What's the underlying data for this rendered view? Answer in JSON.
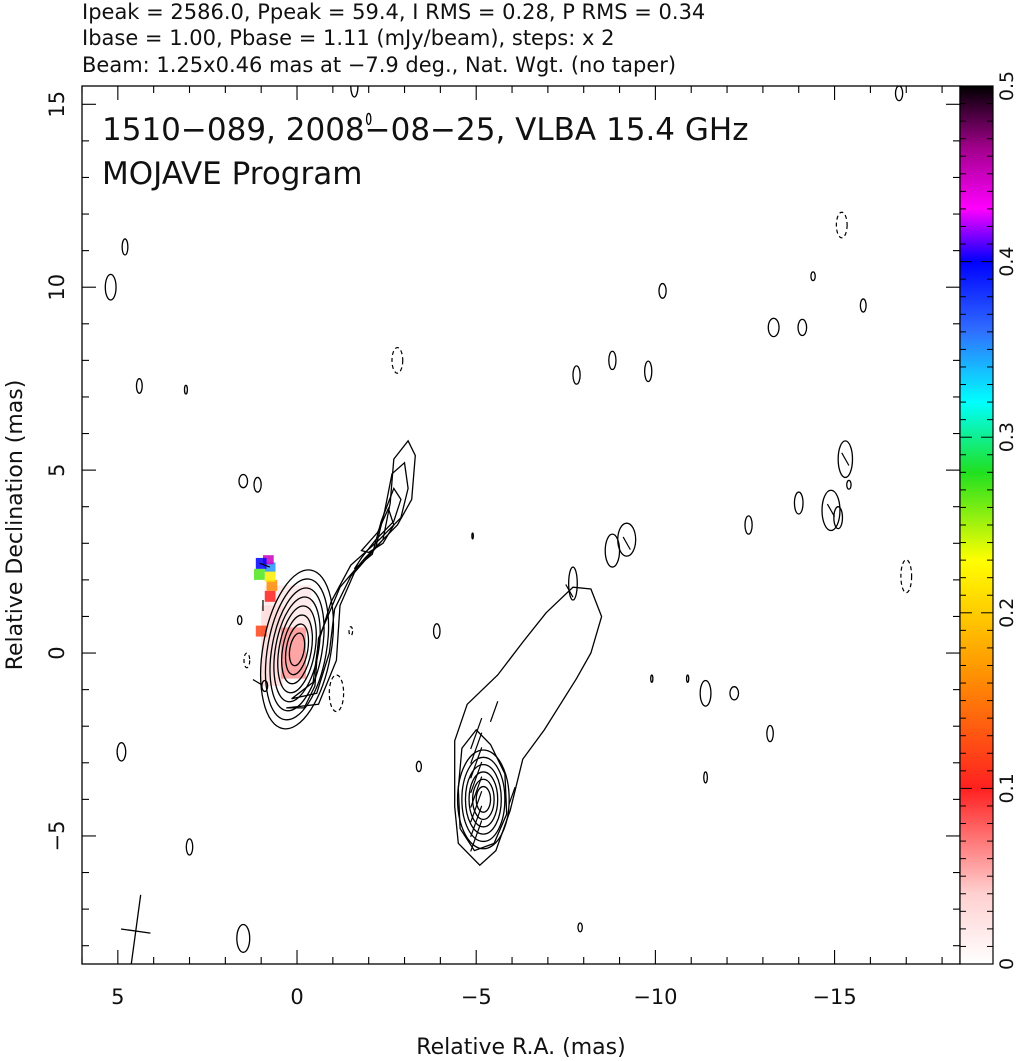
{
  "chart_data": {
    "type": "contour",
    "header_lines": [
      "Ipeak = 2586.0, Ppeak = 59.4, I RMS = 0.28, P RMS = 0.34",
      "Ibase = 1.00, Pbase = 1.11 (mJy/beam), steps: x 2",
      "Beam: 1.25x0.46 mas at −7.9 deg., Nat. Wgt. (no taper)"
    ],
    "title": "1510−089, 2008−08−25, VLBA 15.4 GHz",
    "subtitle": "MOJAVE Program",
    "xlabel": "Relative R.A. (mas)",
    "ylabel": "Relative Declination (mas)",
    "xlim": [
      6,
      -18.5
    ],
    "ylim": [
      -8.5,
      15.5
    ],
    "xticks": [
      5,
      0,
      -5,
      -10,
      -15
    ],
    "xtick_labels": [
      "5",
      "0",
      "−5",
      "−10",
      "−15"
    ],
    "yticks": [
      -5,
      0,
      5,
      10,
      15
    ],
    "ytick_labels": [
      "−5",
      "0",
      "5",
      "10",
      "15"
    ],
    "colorbar": {
      "range": [
        0,
        0.5
      ],
      "ticks": [
        0,
        0.1,
        0.2,
        0.3,
        0.4,
        0.5
      ],
      "tick_labels": [
        "0",
        "0.1",
        "0.2",
        "0.3",
        "0.4",
        "0.5"
      ]
    },
    "beam": {
      "major_mas": 1.25,
      "minor_mas": 0.46,
      "pa_deg": -7.9,
      "center": [
        4.5,
        -7.6
      ]
    },
    "core_total_intensity": {
      "center": [
        0,
        0.1
      ],
      "contours": [
        {
          "rx": 0.2,
          "ry": 0.45
        },
        {
          "rx": 0.3,
          "ry": 0.7
        },
        {
          "rx": 0.4,
          "ry": 0.95
        },
        {
          "rx": 0.5,
          "ry": 1.2
        },
        {
          "rx": 0.6,
          "ry": 1.45
        },
        {
          "rx": 0.7,
          "ry": 1.7
        },
        {
          "rx": 0.82,
          "ry": 1.95
        },
        {
          "rx": 0.95,
          "ry": 2.2
        }
      ]
    },
    "outer_contours": [
      [
        [
          0.3,
          -1.5
        ],
        [
          -0.6,
          -1.4
        ],
        [
          -1.1,
          -0.2
        ],
        [
          -1.2,
          1.3
        ],
        [
          -1.6,
          2.2
        ],
        [
          -2.4,
          3.1
        ],
        [
          -2.6,
          4.1
        ],
        [
          -2.7,
          5.3
        ],
        [
          -3.1,
          5.8
        ],
        [
          -3.3,
          5.4
        ],
        [
          -3.2,
          4.2
        ],
        [
          -2.8,
          3.5
        ],
        [
          -1.9,
          2.6
        ],
        [
          -1.2,
          1.8
        ],
        [
          -0.6,
          0.4
        ],
        [
          -0.5,
          -0.9
        ],
        [
          -0.2,
          -1.5
        ],
        [
          0.3,
          -1.5
        ]
      ],
      [
        [
          0.15,
          -1.25
        ],
        [
          -0.55,
          -1.1
        ],
        [
          -0.9,
          0
        ],
        [
          -1.05,
          1.2
        ],
        [
          -1.5,
          2.1
        ],
        [
          -2.2,
          2.9
        ],
        [
          -2.45,
          3.9
        ],
        [
          -2.65,
          4.9
        ],
        [
          -3.0,
          5.2
        ],
        [
          -3.1,
          4.5
        ],
        [
          -2.9,
          3.7
        ],
        [
          -2.3,
          3.1
        ],
        [
          -1.5,
          2.4
        ],
        [
          -0.95,
          1.4
        ],
        [
          -0.6,
          0.3
        ],
        [
          -0.45,
          -0.8
        ],
        [
          0.15,
          -1.25
        ]
      ],
      [
        [
          -1.6,
          2.3
        ],
        [
          -2.1,
          2.7
        ],
        [
          -2.35,
          3.6
        ],
        [
          -2.7,
          4.5
        ],
        [
          -2.9,
          4.2
        ],
        [
          -2.7,
          3.6
        ],
        [
          -2.2,
          3.1
        ],
        [
          -1.8,
          2.6
        ],
        [
          -1.6,
          2.3
        ]
      ],
      [
        [
          -1.8,
          2.8
        ],
        [
          -2.25,
          3.3
        ],
        [
          -2.55,
          3.95
        ],
        [
          -2.7,
          3.5
        ],
        [
          -2.4,
          3.0
        ],
        [
          -2.0,
          2.75
        ],
        [
          -1.8,
          2.8
        ]
      ],
      [
        [
          -4.4,
          -4.2
        ],
        [
          -4.4,
          -2.4
        ],
        [
          -4.75,
          -1.4
        ],
        [
          -5.6,
          -0.6
        ],
        [
          -6.3,
          0.3
        ],
        [
          -6.95,
          1.1
        ],
        [
          -7.7,
          1.8
        ],
        [
          -8.2,
          1.75
        ],
        [
          -8.5,
          1.0
        ],
        [
          -8.2,
          0
        ],
        [
          -7.8,
          -0.7
        ],
        [
          -6.9,
          -2.1
        ],
        [
          -6.3,
          -2.9
        ],
        [
          -5.95,
          -4.3
        ],
        [
          -5.55,
          -5.4
        ],
        [
          -5.1,
          -5.8
        ],
        [
          -4.5,
          -5.2
        ],
        [
          -4.4,
          -4.2
        ]
      ],
      [
        [
          -4.5,
          -3.7
        ],
        [
          -4.6,
          -2.6
        ],
        [
          -5.0,
          -2.1
        ],
        [
          -5.4,
          -2.5
        ],
        [
          -5.8,
          -3.3
        ],
        [
          -5.85,
          -4.4
        ],
        [
          -5.5,
          -5.2
        ],
        [
          -4.95,
          -5.4
        ],
        [
          -4.55,
          -4.8
        ],
        [
          -4.5,
          -3.7
        ]
      ]
    ],
    "jet_knot": {
      "center": [
        -5.2,
        -4.0
      ],
      "contours": [
        {
          "rx": 0.2,
          "ry": 0.35
        },
        {
          "rx": 0.3,
          "ry": 0.55
        },
        {
          "rx": 0.4,
          "ry": 0.75
        },
        {
          "rx": 0.5,
          "ry": 0.95
        },
        {
          "rx": 0.6,
          "ry": 1.15
        },
        {
          "rx": 0.72,
          "ry": 1.35
        }
      ]
    },
    "small_blobs": [
      {
        "x": 5.2,
        "y": 10.0,
        "rx": 0.15,
        "ry": 0.35
      },
      {
        "x": 4.8,
        "y": 11.1,
        "rx": 0.08,
        "ry": 0.22
      },
      {
        "x": 4.4,
        "y": 7.3,
        "rx": 0.08,
        "ry": 0.2
      },
      {
        "x": 3.1,
        "y": 7.2,
        "rx": 0.04,
        "ry": 0.12
      },
      {
        "x": 1.5,
        "y": 4.7,
        "rx": 0.12,
        "ry": 0.18
      },
      {
        "x": 1.1,
        "y": 4.6,
        "rx": 0.1,
        "ry": 0.2
      },
      {
        "x": 1.6,
        "y": 0.9,
        "rx": 0.06,
        "ry": 0.12
      },
      {
        "x": 4.9,
        "y": -2.7,
        "rx": 0.12,
        "ry": 0.25
      },
      {
        "x": 3.0,
        "y": -5.3,
        "rx": 0.09,
        "ry": 0.22
      },
      {
        "x": 1.5,
        "y": -7.8,
        "rx": 0.18,
        "ry": 0.38
      },
      {
        "x": -1.6,
        "y": 15.5,
        "rx": 0.1,
        "ry": 0.3
      },
      {
        "x": -2.0,
        "y": 14.6,
        "rx": 0.06,
        "ry": 0.15
      },
      {
        "x": -3.9,
        "y": 0.6,
        "rx": 0.09,
        "ry": 0.2
      },
      {
        "x": -3.4,
        "y": -3.1,
        "rx": 0.07,
        "ry": 0.14
      },
      {
        "x": -7.8,
        "y": 7.6,
        "rx": 0.1,
        "ry": 0.25
      },
      {
        "x": -8.8,
        "y": 8.0,
        "rx": 0.1,
        "ry": 0.25
      },
      {
        "x": -9.8,
        "y": 7.7,
        "rx": 0.1,
        "ry": 0.28
      },
      {
        "x": -10.2,
        "y": 9.9,
        "rx": 0.1,
        "ry": 0.2
      },
      {
        "x": -8.8,
        "y": 2.8,
        "rx": 0.2,
        "ry": 0.45
      },
      {
        "x": -7.9,
        "y": -7.5,
        "rx": 0.06,
        "ry": 0.12
      },
      {
        "x": -11.4,
        "y": -1.1,
        "rx": 0.15,
        "ry": 0.35
      },
      {
        "x": -12.2,
        "y": -1.1,
        "rx": 0.12,
        "ry": 0.18
      },
      {
        "x": -13.2,
        "y": -2.2,
        "rx": 0.09,
        "ry": 0.22
      },
      {
        "x": -12.6,
        "y": 3.5,
        "rx": 0.1,
        "ry": 0.25
      },
      {
        "x": -13.3,
        "y": 8.9,
        "rx": 0.15,
        "ry": 0.25
      },
      {
        "x": -14.1,
        "y": 8.9,
        "rx": 0.12,
        "ry": 0.22
      },
      {
        "x": -14.0,
        "y": 4.1,
        "rx": 0.12,
        "ry": 0.3
      },
      {
        "x": -14.4,
        "y": 10.3,
        "rx": 0.06,
        "ry": 0.12
      },
      {
        "x": -15.3,
        "y": 5.3,
        "rx": 0.2,
        "ry": 0.5
      },
      {
        "x": -15.1,
        "y": 3.7,
        "rx": 0.12,
        "ry": 0.3
      },
      {
        "x": -15.4,
        "y": 4.6,
        "rx": 0.06,
        "ry": 0.12
      },
      {
        "x": -15.8,
        "y": 9.5,
        "rx": 0.08,
        "ry": 0.18
      },
      {
        "x": -16.8,
        "y": 15.3,
        "rx": 0.1,
        "ry": 0.2
      },
      {
        "x": -10.9,
        "y": -0.7,
        "rx": 0.03,
        "ry": 0.1
      },
      {
        "x": -9.9,
        "y": -0.7,
        "rx": 0.03,
        "ry": 0.1
      },
      {
        "x": -11.4,
        "y": -3.4,
        "rx": 0.05,
        "ry": 0.15
      },
      {
        "x": 0.9,
        "y": -0.9,
        "rx": 0.08,
        "ry": 0.15
      },
      {
        "x": -4.9,
        "y": 3.2,
        "rx": 0.02,
        "ry": 0.08
      },
      {
        "x": -7.7,
        "y": 1.9,
        "rx": 0.12,
        "ry": 0.45
      },
      {
        "x": -9.2,
        "y": 3.1,
        "rx": 0.25,
        "ry": 0.45
      },
      {
        "x": -14.9,
        "y": 3.9,
        "rx": 0.25,
        "ry": 0.55
      }
    ],
    "negative_blobs": [
      {
        "x": -2.8,
        "y": 8.0,
        "rx": 0.15,
        "ry": 0.35
      },
      {
        "x": -15.2,
        "y": 11.7,
        "rx": 0.15,
        "ry": 0.35
      },
      {
        "x": -17.0,
        "y": 2.1,
        "rx": 0.15,
        "ry": 0.45
      },
      {
        "x": -1.1,
        "y": -1.1,
        "rx": 0.2,
        "ry": 0.5
      },
      {
        "x": 1.4,
        "y": -0.2,
        "rx": 0.08,
        "ry": 0.2
      },
      {
        "x": -1.5,
        "y": 0.6,
        "rx": 0.05,
        "ry": 0.12
      }
    ],
    "polarization_pixels": [
      {
        "x": 0.25,
        "y": 1.2,
        "v": 0.02,
        "w": 1.3,
        "h": 1.3
      },
      {
        "x": 0.7,
        "y": 0.2,
        "v": 0.03,
        "w": 0.6,
        "h": 2.2
      },
      {
        "x": 0.1,
        "y": 0.0,
        "v": 0.06,
        "w": 0.7,
        "h": 1.4
      },
      {
        "x": 0.75,
        "y": 1.55,
        "v": 0.1,
        "w": 0.3,
        "h": 0.3
      },
      {
        "x": 0.7,
        "y": 1.85,
        "v": 0.16,
        "w": 0.3,
        "h": 0.3
      },
      {
        "x": 0.75,
        "y": 2.1,
        "v": 0.22,
        "w": 0.3,
        "h": 0.3
      },
      {
        "x": 0.75,
        "y": 2.35,
        "v": 0.35,
        "w": 0.3,
        "h": 0.25
      },
      {
        "x": 0.8,
        "y": 2.55,
        "v": 0.45,
        "w": 0.3,
        "h": 0.25
      },
      {
        "x": 1.0,
        "y": 2.45,
        "v": 0.4,
        "w": 0.3,
        "h": 0.3
      },
      {
        "x": 1.05,
        "y": 2.15,
        "v": 0.27,
        "w": 0.3,
        "h": 0.3
      },
      {
        "x": 1.0,
        "y": 0.6,
        "v": 0.12,
        "w": 0.3,
        "h": 0.3
      }
    ],
    "evpa_vectors": [
      {
        "x": 0.9,
        "y": 2.4,
        "angle": 20,
        "len": 0.3
      },
      {
        "x": 0.95,
        "y": 1.3,
        "angle": 90,
        "len": 0.3
      },
      {
        "x": 1.1,
        "y": -0.8,
        "angle": 30,
        "len": 0.3
      },
      {
        "x": -5.0,
        "y": -2.2,
        "angle": 110,
        "len": 0.9
      },
      {
        "x": -5.0,
        "y": -2.6,
        "angle": 110,
        "len": 0.9
      },
      {
        "x": -5.0,
        "y": -3.0,
        "angle": 110,
        "len": 0.9
      },
      {
        "x": -5.0,
        "y": -3.4,
        "angle": 110,
        "len": 0.9
      },
      {
        "x": -5.0,
        "y": -3.8,
        "angle": 110,
        "len": 0.9
      },
      {
        "x": -5.0,
        "y": -4.2,
        "angle": 110,
        "len": 0.9
      },
      {
        "x": -5.0,
        "y": -4.6,
        "angle": 110,
        "len": 0.9
      },
      {
        "x": -5.0,
        "y": -5.0,
        "angle": 110,
        "len": 0.9
      },
      {
        "x": -5.5,
        "y": -1.6,
        "angle": 110,
        "len": 0.6
      },
      {
        "x": -6.0,
        "y": -3.9,
        "angle": 110,
        "len": 0.5
      },
      {
        "x": -7.6,
        "y": 1.7,
        "angle": 60,
        "len": 0.4
      },
      {
        "x": -9.2,
        "y": 3.0,
        "angle": 60,
        "len": 0.4
      },
      {
        "x": -14.9,
        "y": 3.9,
        "angle": 60,
        "len": 0.4
      },
      {
        "x": -15.3,
        "y": 5.3,
        "angle": 60,
        "len": 0.4
      }
    ]
  }
}
